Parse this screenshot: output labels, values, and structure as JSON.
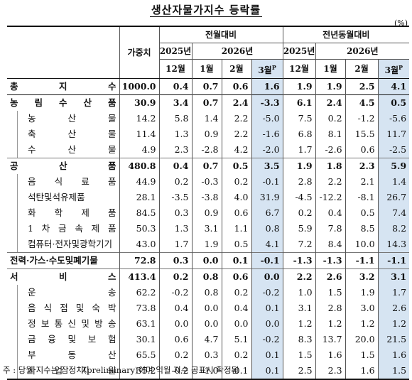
{
  "title": "생산자물가지수 등락률",
  "unit": "(%)",
  "headers": {
    "weight": "가중치",
    "group_mom": "전월대비",
    "group_yoy": "전년동월대비",
    "year_2025": "2025년",
    "year_2026": "2026년",
    "m12": "12월",
    "m1": "1월",
    "m2": "2월",
    "m3": "3월",
    "m3_sup": "P"
  },
  "rows": [
    {
      "name": "총 지 수",
      "weight": "1000.0",
      "mom": [
        "0.4",
        "0.7",
        "0.6",
        "1.6"
      ],
      "yoy": [
        "1.9",
        "1.9",
        "2.5",
        "4.1"
      ]
    },
    {
      "name": "농 림 수 산 품",
      "weight": "30.9",
      "mom": [
        "3.4",
        "0.7",
        "2.4",
        "-3.3"
      ],
      "yoy": [
        "6.1",
        "2.4",
        "4.5",
        "0.5"
      ]
    },
    {
      "name": "농 산 물",
      "weight": "14.2",
      "mom": [
        "5.8",
        "1.4",
        "2.2",
        "-5.0"
      ],
      "yoy": [
        "7.5",
        "0.2",
        "-1.2",
        "-5.6"
      ]
    },
    {
      "name": "축 산 물",
      "weight": "11.4",
      "mom": [
        "1.3",
        "0.9",
        "2.2",
        "-1.6"
      ],
      "yoy": [
        "6.8",
        "8.1",
        "15.5",
        "11.7"
      ]
    },
    {
      "name": "수 산 물",
      "weight": "4.9",
      "mom": [
        "2.3",
        "-2.8",
        "4.2",
        "-2.0"
      ],
      "yoy": [
        "1.7",
        "-2.6",
        "0.6",
        "-2.5"
      ]
    },
    {
      "name": "공 산 품",
      "weight": "480.8",
      "mom": [
        "0.4",
        "0.7",
        "0.5",
        "3.5"
      ],
      "yoy": [
        "1.9",
        "1.8",
        "2.3",
        "5.9"
      ]
    },
    {
      "name": "음 식 료 품",
      "weight": "44.9",
      "mom": [
        "0.2",
        "-0.3",
        "0.2",
        "-0.1"
      ],
      "yoy": [
        "2.8",
        "2.2",
        "2.1",
        "1.4"
      ]
    },
    {
      "name": "석탄및석유제품",
      "weight": "28.1",
      "mom": [
        "-3.5",
        "-3.8",
        "4.0",
        "31.9"
      ],
      "yoy": [
        "-4.5",
        "-12.2",
        "-8.1",
        "26.7"
      ]
    },
    {
      "name": "화 학 제 품",
      "weight": "84.5",
      "mom": [
        "0.3",
        "0.9",
        "0.6",
        "6.7"
      ],
      "yoy": [
        "0.2",
        "0.4",
        "0.5",
        "7.4"
      ]
    },
    {
      "name": "1 차 금 속 제 품",
      "weight": "50.3",
      "mom": [
        "1.3",
        "3.1",
        "1.1",
        "0.8"
      ],
      "yoy": [
        "5.9",
        "7.8",
        "8.5",
        "8.2"
      ]
    },
    {
      "name": "컴퓨터·전자및광학기기",
      "weight": "43.0",
      "mom": [
        "1.7",
        "1.9",
        "0.5",
        "4.1"
      ],
      "yoy": [
        "7.2",
        "8.4",
        "10.0",
        "14.3"
      ]
    },
    {
      "name": "전력·가스·수도및폐기물",
      "weight": "72.8",
      "mom": [
        "0.3",
        "0.0",
        "0.1",
        "-0.1"
      ],
      "yoy": [
        "-1.3",
        "-1.3",
        "-1.1",
        "-1.1"
      ]
    },
    {
      "name": "서 비 스",
      "weight": "413.4",
      "mom": [
        "0.2",
        "0.8",
        "0.6",
        "0.0"
      ],
      "yoy": [
        "2.2",
        "2.6",
        "3.2",
        "3.1"
      ]
    },
    {
      "name": "운 송",
      "weight": "62.2",
      "mom": [
        "-0.2",
        "0.8",
        "0.2",
        "-0.2"
      ],
      "yoy": [
        "1.0",
        "1.5",
        "1.9",
        "1.7"
      ]
    },
    {
      "name": "음 식 점 및 숙 박",
      "weight": "73.8",
      "mom": [
        "0.4",
        "0.0",
        "0.4",
        "0.1"
      ],
      "yoy": [
        "3.1",
        "2.8",
        "3.0",
        "2.6"
      ]
    },
    {
      "name": "정 보 통 신 및 방 송",
      "weight": "63.1",
      "mom": [
        "0.0",
        "0.0",
        "0.0",
        "0.0"
      ],
      "yoy": [
        "1.2",
        "1.2",
        "1.2",
        "1.2"
      ]
    },
    {
      "name": "금 융 및 보 험",
      "weight": "30.1",
      "mom": [
        "0.6",
        "4.7",
        "5.1",
        "-0.2"
      ],
      "yoy": [
        "8.3",
        "13.7",
        "20.0",
        "21.5"
      ]
    },
    {
      "name": "부 동 산",
      "weight": "65.5",
      "mom": [
        "0.2",
        "0.3",
        "0.2",
        "0.1"
      ],
      "yoy": [
        "1.5",
        "1.6",
        "1.5",
        "1.6"
      ]
    },
    {
      "name": "사 업 지 원",
      "weight": "35.2",
      "mom": [
        "-0.2",
        "1.0",
        "-0.1",
        "0.1"
      ],
      "yoy": [
        "2.5",
        "2.3",
        "1.6",
        "1.5"
      ]
    }
  ],
  "note": "주 : 당월 지수는 잠정치(preliminary)이며 익월 지수 공표시 확정됨"
}
